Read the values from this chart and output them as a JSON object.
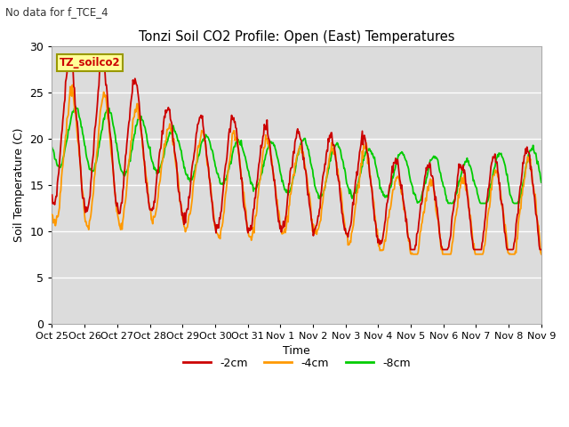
{
  "title": "Tonzi Soil CO2 Profile: Open (East) Temperatures",
  "subtitle": "No data for f_TCE_4",
  "xlabel": "Time",
  "ylabel": "Soil Temperature (C)",
  "ylim": [
    0,
    30
  ],
  "yticks": [
    0,
    5,
    10,
    15,
    20,
    25,
    30
  ],
  "bg_color": "#dcdcdc",
  "outer_bg": "#ffffff",
  "legend_label": "TZ_soilco2",
  "legend_box_color": "#ffff99",
  "legend_box_edge": "#999900",
  "colors": {
    "2cm": "#cc0000",
    "4cm": "#ff9900",
    "8cm": "#00cc00"
  },
  "grid_color": "#ffffff",
  "n_days": 15,
  "points_per_day": 48,
  "tick_labels": [
    "Oct 25",
    "Oct 26",
    "Oct 27",
    "Oct 28",
    "Oct 29",
    "Oct 30",
    "Oct 31",
    "Nov 1",
    "Nov 2",
    "Nov 3",
    "Nov 4",
    "Nov 5",
    "Nov 6",
    "Nov 7",
    "Nov 8",
    "Nov 9"
  ]
}
